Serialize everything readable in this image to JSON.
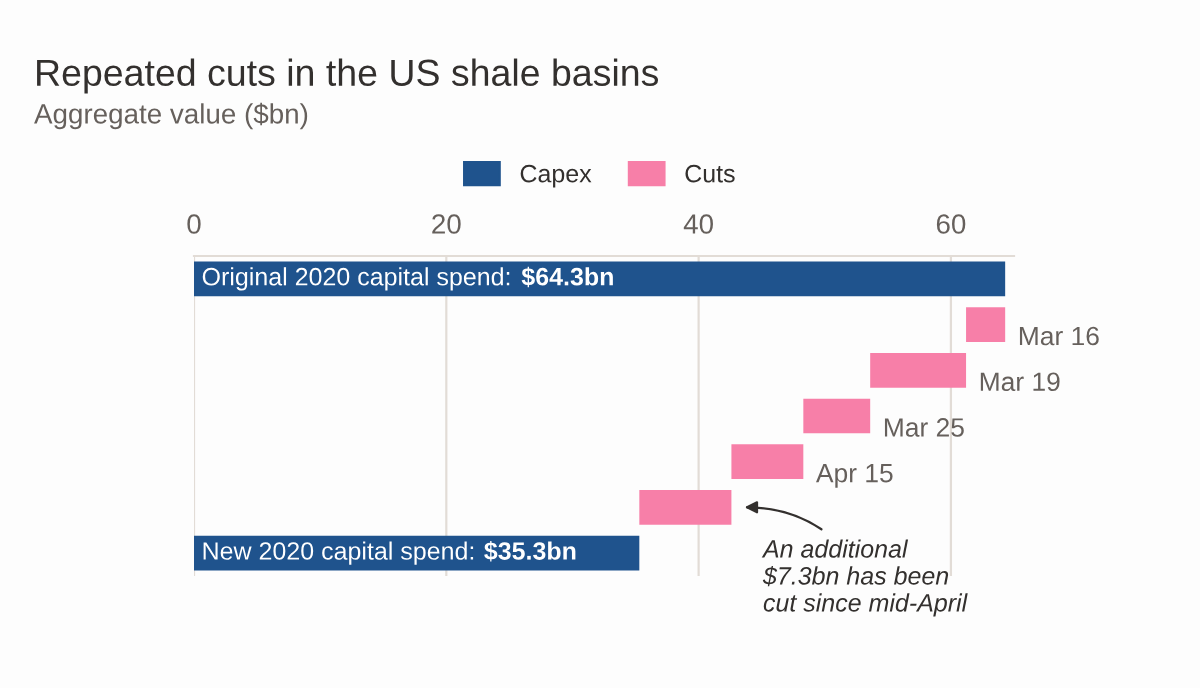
{
  "chart_data": {
    "type": "bar",
    "orientation": "horizontal",
    "title": "Repeated cuts in the US shale basins",
    "subtitle": "Aggregate value ($bn)",
    "categories": [
      "Original 2020 capital spend: $64.3bn",
      "Mar 16",
      "Mar 19",
      "Mar 25",
      "Apr 15",
      null,
      "New 2020 capital spend: $35.3bn"
    ],
    "series": [
      {
        "name": "Capex",
        "color": "#1f538d",
        "values": [
          64.3,
          null,
          null,
          null,
          null,
          null,
          35.3
        ]
      },
      {
        "name": "Cuts",
        "color": "#f77fa8",
        "base": [
          null,
          61.2,
          53.6,
          48.3,
          42.6,
          35.3,
          null
        ],
        "values": [
          null,
          3.1,
          7.6,
          5.3,
          5.7,
          7.3,
          null
        ]
      }
    ],
    "xlim": [
      0,
      65
    ],
    "xticks": [
      0,
      20,
      40,
      60
    ],
    "grid": "x",
    "legend": "top",
    "annotations": [
      "An additional\n$7.3bn has been\ncut since mid-April"
    ]
  }
}
